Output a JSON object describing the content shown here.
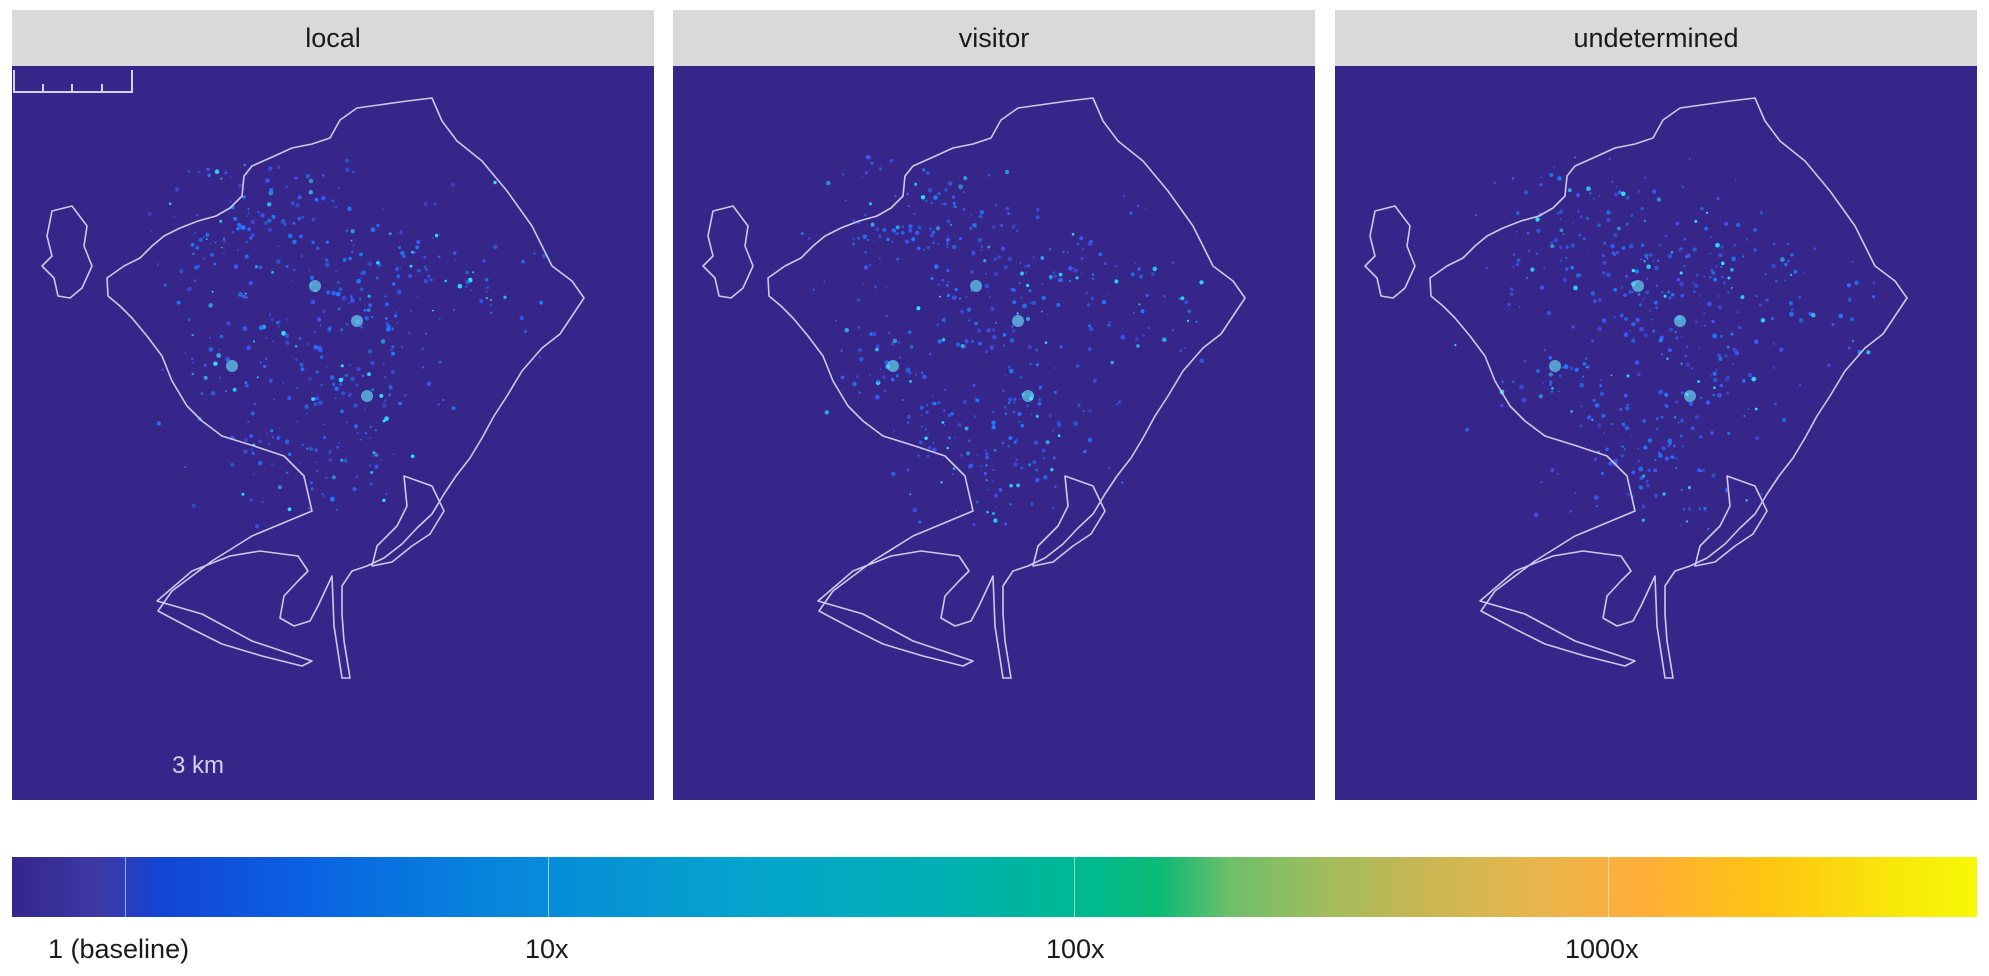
{
  "panels": [
    {
      "title": "local"
    },
    {
      "title": "visitor"
    },
    {
      "title": "undetermined"
    }
  ],
  "scale_bar": {
    "label": "3 km"
  },
  "colorbar": {
    "labels": [
      "1 (baseline)",
      "10x",
      "100x",
      "1000x"
    ],
    "colors": [
      "#34268b",
      "#1344d4",
      "#05a5cc",
      "#0cbb74",
      "#ffae38",
      "#f7f808"
    ]
  },
  "colors": {
    "background": "#36268a",
    "boundary": "#cfc8ea",
    "hotspot": "#2ee6ff"
  }
}
